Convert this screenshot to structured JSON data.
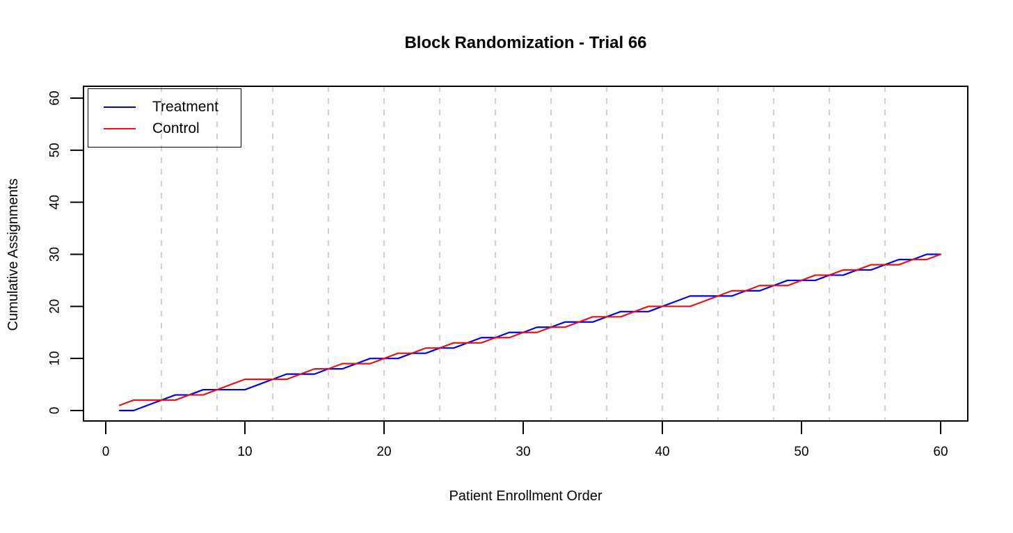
{
  "chart_data": {
    "type": "line",
    "title": "Block Randomization - Trial 66",
    "xlabel": "Patient Enrollment Order",
    "ylabel": "Cumulative Assignments",
    "xlim": [
      0,
      62
    ],
    "ylim": [
      0,
      62
    ],
    "x_ticks": [
      0,
      10,
      20,
      30,
      40,
      50,
      60
    ],
    "y_ticks": [
      0,
      10,
      20,
      30,
      40,
      50,
      60
    ],
    "grid": "vertical dashed lines at block boundaries",
    "legend_position": "top-left",
    "block_size": 4,
    "block_boundaries": [
      4,
      8,
      12,
      16,
      20,
      24,
      28,
      32,
      36,
      40,
      44,
      48,
      52,
      56
    ],
    "x": [
      1,
      2,
      3,
      4,
      5,
      6,
      7,
      8,
      9,
      10,
      11,
      12,
      13,
      14,
      15,
      16,
      17,
      18,
      19,
      20,
      21,
      22,
      23,
      24,
      25,
      26,
      27,
      28,
      29,
      30,
      31,
      32,
      33,
      34,
      35,
      36,
      37,
      38,
      39,
      40,
      41,
      42,
      43,
      44,
      45,
      46,
      47,
      48,
      49,
      50,
      51,
      52,
      53,
      54,
      55,
      56,
      57,
      58,
      59,
      60
    ],
    "series": [
      {
        "name": "Treatment",
        "color": "#0000EE",
        "values": [
          0,
          0,
          1,
          2,
          3,
          3,
          4,
          4,
          4,
          4,
          5,
          6,
          7,
          7,
          7,
          8,
          8,
          9,
          10,
          10,
          10,
          11,
          11,
          12,
          12,
          13,
          14,
          14,
          15,
          15,
          16,
          16,
          17,
          17,
          17,
          18,
          19,
          19,
          19,
          20,
          21,
          22,
          22,
          22,
          22,
          23,
          23,
          24,
          25,
          25,
          25,
          26,
          26,
          27,
          27,
          28,
          29,
          29,
          30,
          30
        ]
      },
      {
        "name": "Control",
        "color": "#EE1111",
        "values": [
          1,
          2,
          2,
          2,
          2,
          3,
          3,
          4,
          5,
          6,
          6,
          6,
          6,
          7,
          8,
          8,
          9,
          9,
          9,
          10,
          11,
          11,
          12,
          12,
          13,
          13,
          13,
          14,
          14,
          15,
          15,
          16,
          16,
          17,
          18,
          18,
          18,
          19,
          20,
          20,
          20,
          20,
          21,
          22,
          23,
          23,
          24,
          24,
          24,
          25,
          26,
          26,
          27,
          27,
          28,
          28,
          28,
          29,
          29,
          30
        ]
      }
    ],
    "colors": {
      "gridline": "#C8C8C8",
      "axis": "#000000",
      "background": "#FFFFFF"
    }
  }
}
